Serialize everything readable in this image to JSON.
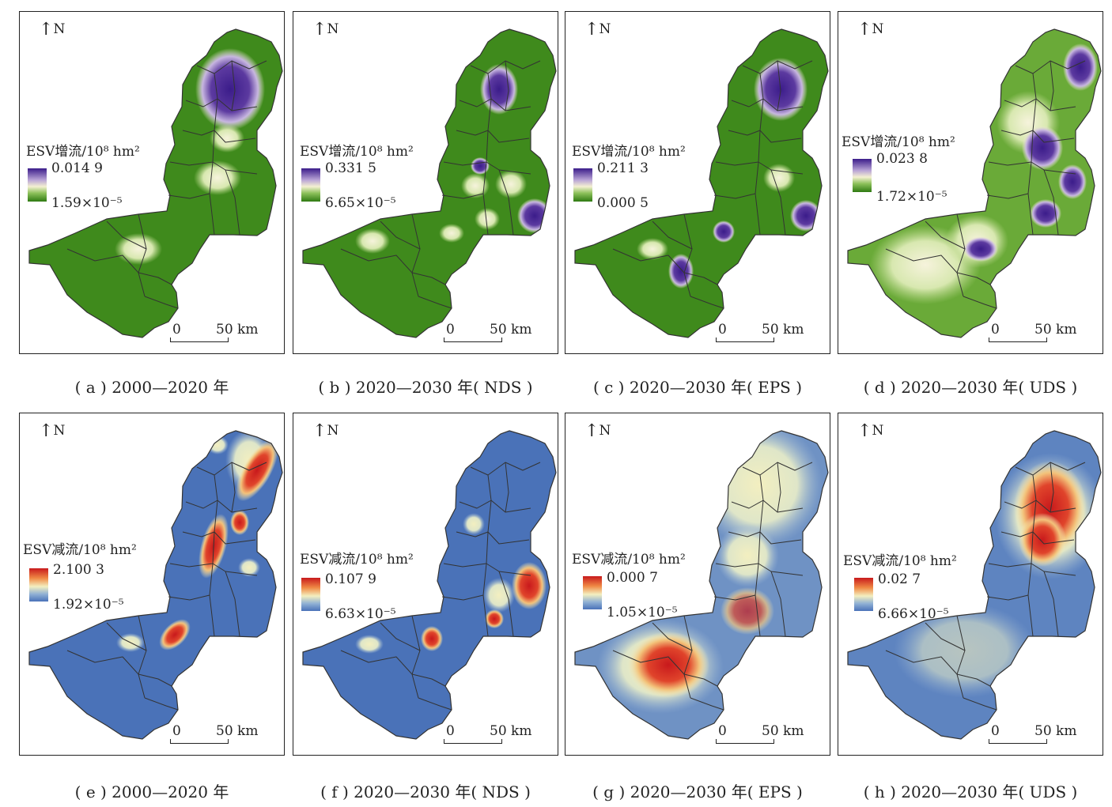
{
  "north_label": "N",
  "scale": {
    "zero": "0",
    "distance": "50 km"
  },
  "colors": {
    "increase": [
      "#2f7a12",
      "#5a9a2a",
      "#bcd88a",
      "#f4f0d2",
      "#9a7fc0",
      "#3b1c8a"
    ],
    "decrease": [
      "#4a72b8",
      "#6f92c4",
      "#e9ecc6",
      "#f3c27a",
      "#e0442b",
      "#c8191c"
    ]
  },
  "panels": [
    {
      "id": "a",
      "type": "increase",
      "legend_title": "ESV增流/10⁸ hm²",
      "max": "0.014 9",
      "min": "1.59×10⁻⁵",
      "caption": "( a ) 2000—2020 年"
    },
    {
      "id": "b",
      "type": "increase",
      "legend_title": "ESV增流/10⁸ hm²",
      "max": "0.331 5",
      "min": "6.65×10⁻⁵",
      "caption": "( b ) 2020—2030 年( NDS )"
    },
    {
      "id": "c",
      "type": "increase",
      "legend_title": "ESV增流/10⁸ hm²",
      "max": "0.211 3",
      "min": "0.000 5",
      "caption": "( c ) 2020—2030 年( EPS )"
    },
    {
      "id": "d",
      "type": "increase",
      "legend_title": "ESV增流/10⁸ hm²",
      "max": "0.023 8",
      "min": "1.72×10⁻⁵",
      "caption": "( d ) 2020—2030 年( UDS )"
    },
    {
      "id": "e",
      "type": "decrease",
      "legend_title": "ESV减流/10⁸ hm²",
      "max": "2.100 3",
      "min": "1.92×10⁻⁵",
      "caption": "( e ) 2000—2020 年"
    },
    {
      "id": "f",
      "type": "decrease",
      "legend_title": "ESV减流/10⁸ hm²",
      "max": "0.107 9",
      "min": "6.63×10⁻⁵",
      "caption": "( f ) 2020—2030 年( NDS )"
    },
    {
      "id": "g",
      "type": "decrease",
      "legend_title": "ESV减流/10⁸ hm²",
      "max": "0.000 7",
      "min": "1.05×10⁻⁵",
      "caption": "( g ) 2020—2030 年( EPS )"
    },
    {
      "id": "h",
      "type": "decrease",
      "legend_title": "ESV减流/10⁸ hm²",
      "max": "0.02 7",
      "min": "6.66×10⁻⁵",
      "caption": "( h ) 2020—2030 年( UDS )"
    }
  ]
}
